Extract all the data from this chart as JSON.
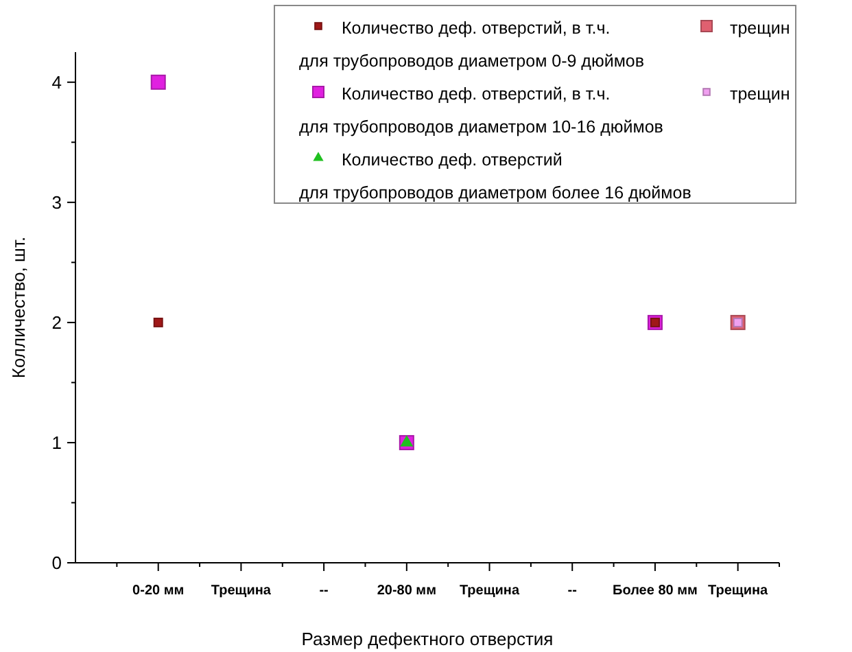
{
  "chart_data": {
    "type": "scatter",
    "xlabel": "Размер дефектного отверстия",
    "ylabel": "Колличество, шт.",
    "categories": [
      "0-20 мм",
      "Трещина",
      "--",
      "20-80 мм",
      "Трещина",
      "--",
      "Более 80 мм",
      "Трещина"
    ],
    "ylim": [
      0,
      4.25
    ],
    "yticks": [
      0,
      1,
      2,
      3,
      4
    ],
    "grid": false,
    "legend": "top right",
    "series": [
      {
        "name": "Количество деф. отверстий, в т.ч.",
        "color": "#a01818",
        "marker": "square",
        "values": [
          2,
          null,
          null,
          null,
          null,
          null,
          2,
          null
        ]
      },
      {
        "name": "трещин",
        "color": "#e06070",
        "marker": "square",
        "values": [
          null,
          null,
          null,
          null,
          null,
          null,
          null,
          2
        ]
      },
      {
        "name": "Количество деф. отверстий, в т.ч.",
        "color": "#e020e0",
        "marker": "square",
        "values": [
          4,
          null,
          null,
          1,
          null,
          null,
          2,
          null
        ]
      },
      {
        "name": "трещин",
        "color": "#f0a0f0",
        "marker": "square",
        "values": [
          null,
          null,
          null,
          null,
          null,
          null,
          null,
          2
        ]
      },
      {
        "name": "Количество деф. отверстий",
        "color": "#20c020",
        "marker": "triangle",
        "values": [
          null,
          null,
          null,
          1,
          null,
          null,
          null,
          null
        ]
      }
    ],
    "annotations": [
      "для трубопроводов диаметром 0-9 дюймов",
      "для трубопроводов диаметром 10-16 дюймов",
      "для трубопроводов диаметром более 16 дюймов"
    ]
  }
}
